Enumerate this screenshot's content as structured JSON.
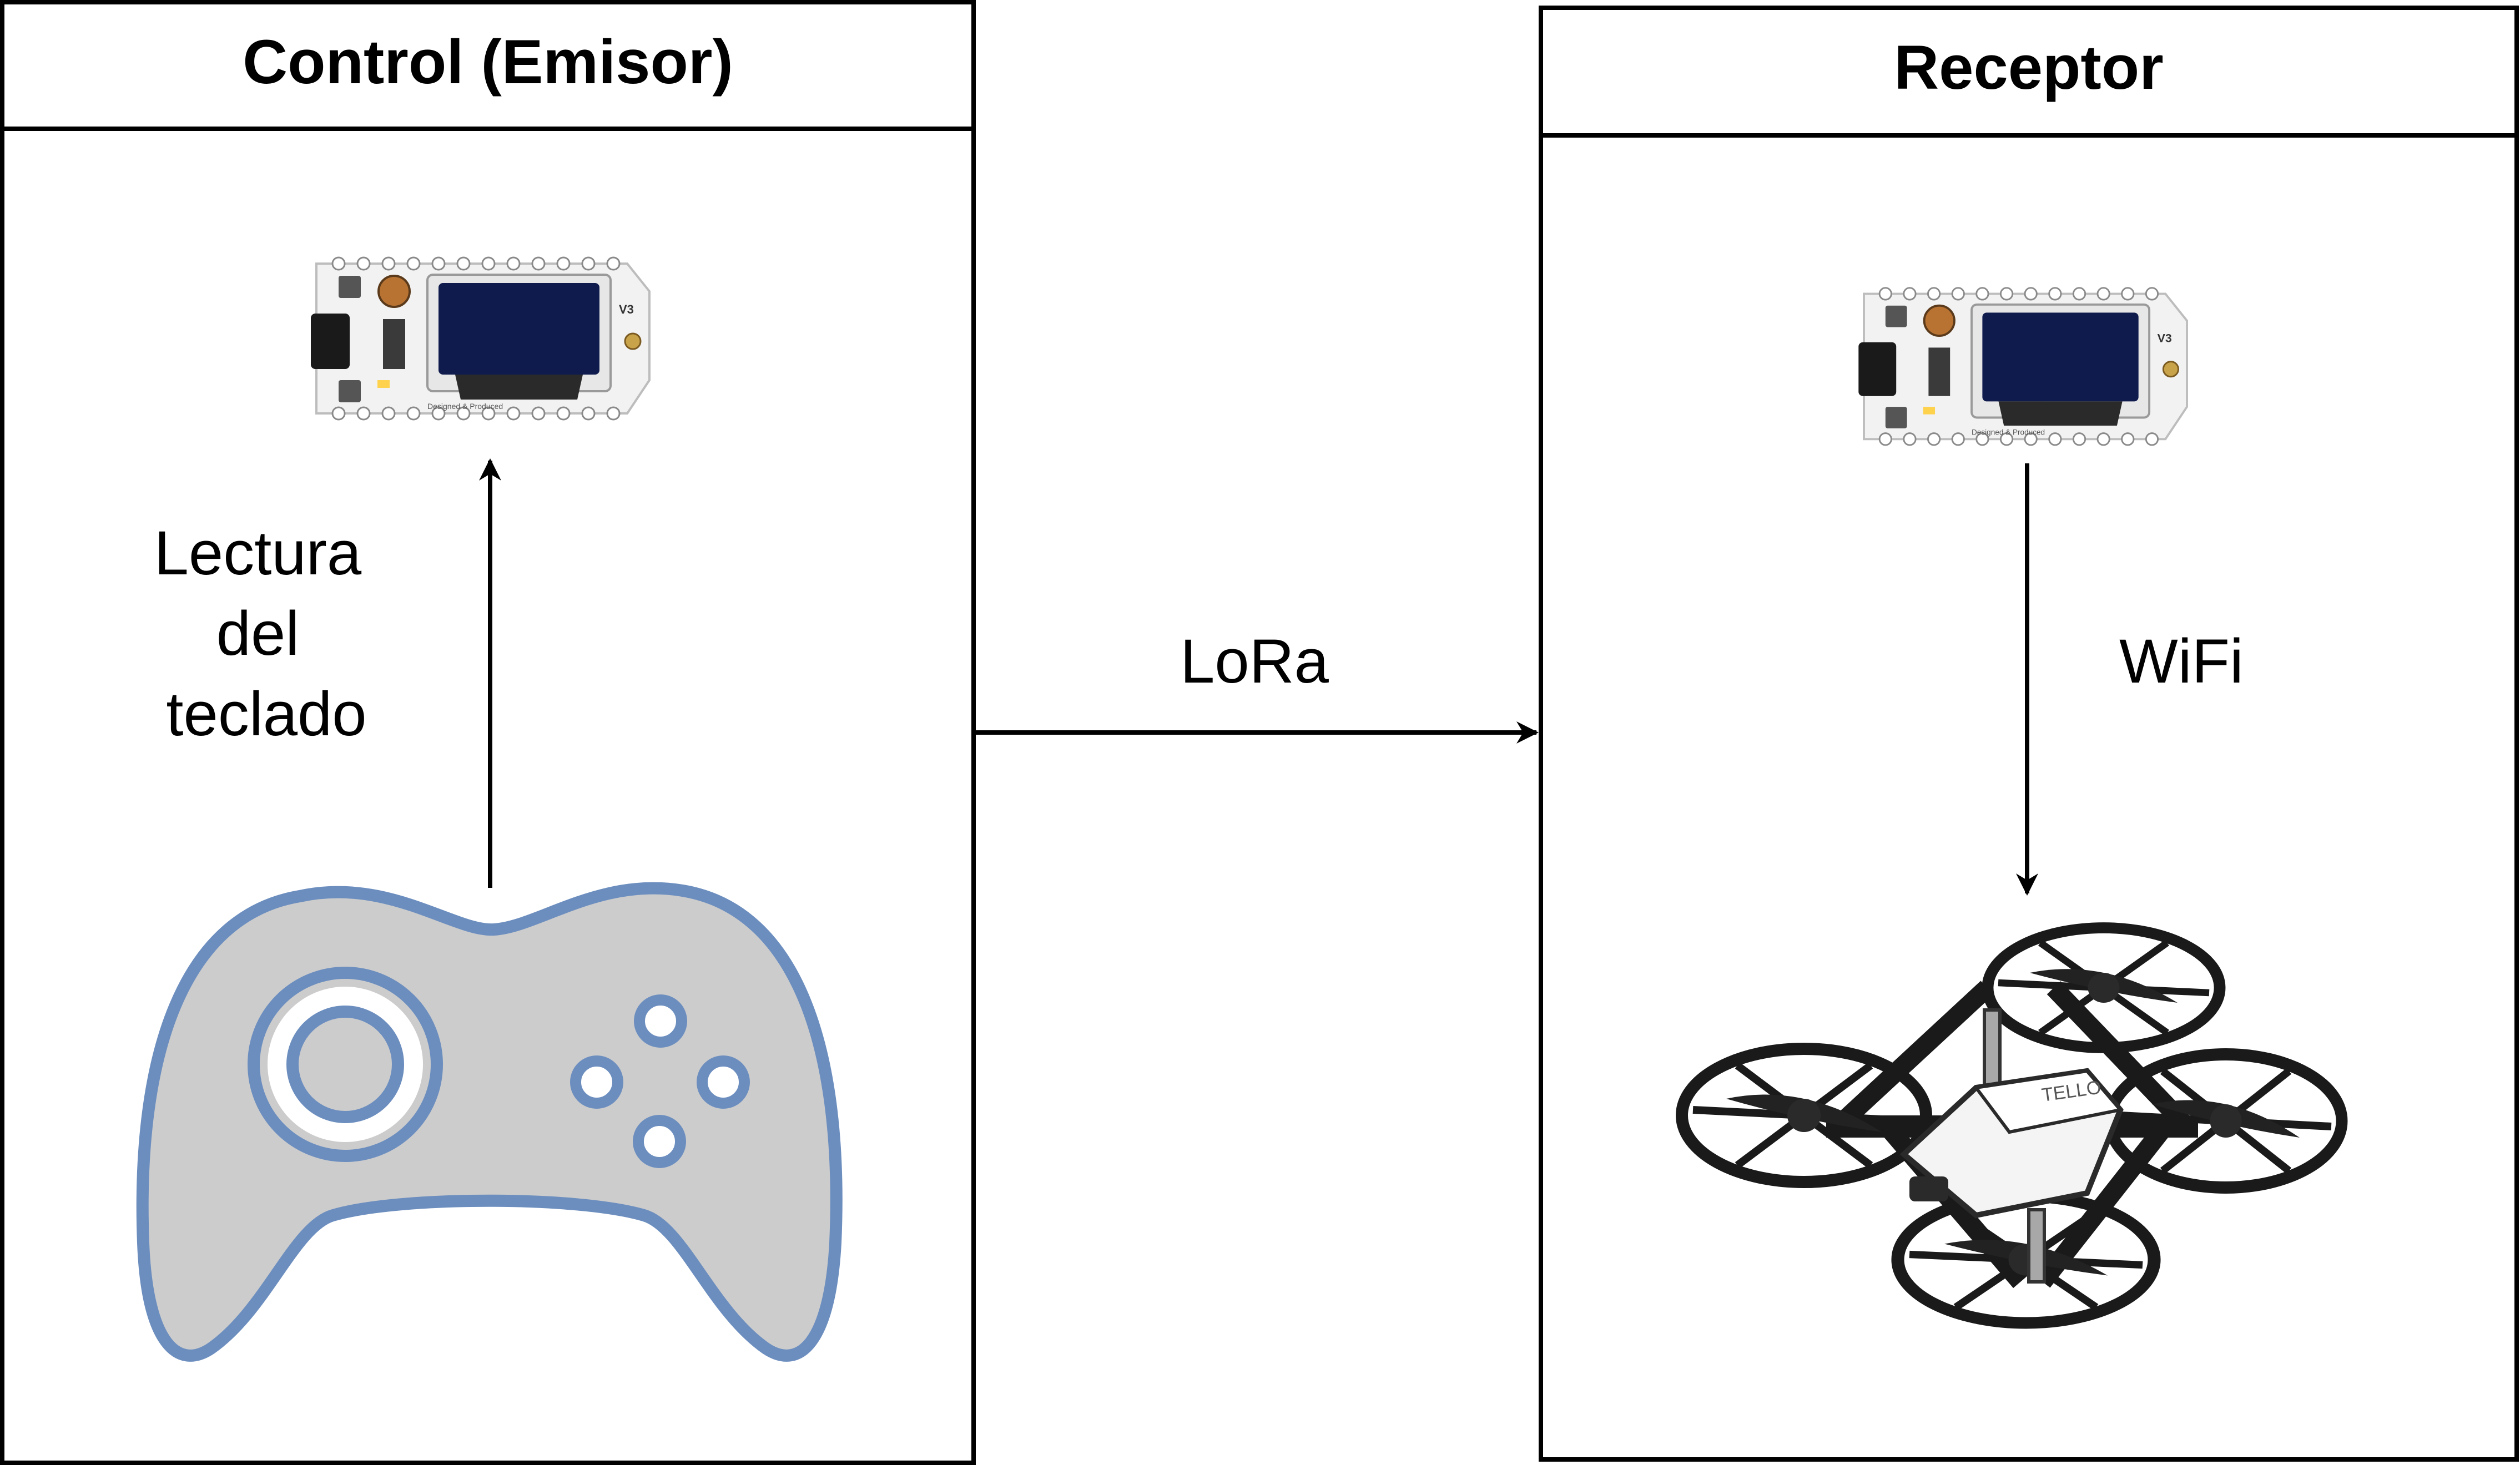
{
  "emitter": {
    "title": "Control (Emisor)",
    "label_lines": [
      "Lectura",
      "del",
      "teclado"
    ]
  },
  "receiver": {
    "title": "Receptor",
    "link_label": "WiFi"
  },
  "link": {
    "label": "LoRa"
  },
  "board": {
    "screen_label": "V3",
    "silkscreen_text": "Designed & Produced"
  },
  "drone": {
    "brand_text": "TELLO"
  },
  "colors": {
    "controller_fill": "#cccccc",
    "controller_stroke": "#6c8ebf",
    "board_pcb": "#f2f2f2",
    "board_screen": "#0f1b4d",
    "drone_body": "#f4f4f4",
    "drone_frame": "#1a1a1a",
    "line": "#000000"
  }
}
